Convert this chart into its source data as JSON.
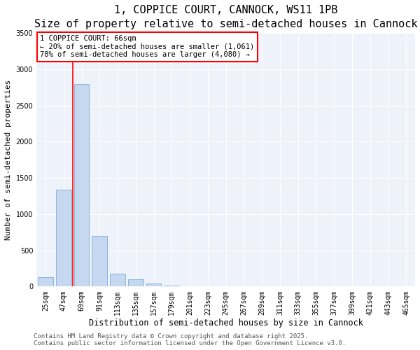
{
  "title": "1, COPPICE COURT, CANNOCK, WS11 1PB",
  "subtitle": "Size of property relative to semi-detached houses in Cannock",
  "xlabel": "Distribution of semi-detached houses by size in Cannock",
  "ylabel": "Number of semi-detached properties",
  "categories": [
    "25sqm",
    "47sqm",
    "69sqm",
    "91sqm",
    "113sqm",
    "135sqm",
    "157sqm",
    "179sqm",
    "201sqm",
    "223sqm",
    "245sqm",
    "267sqm",
    "289sqm",
    "311sqm",
    "333sqm",
    "355sqm",
    "377sqm",
    "399sqm",
    "421sqm",
    "443sqm",
    "465sqm"
  ],
  "values": [
    130,
    1340,
    2800,
    700,
    175,
    100,
    40,
    10,
    0,
    0,
    0,
    0,
    0,
    0,
    0,
    0,
    0,
    0,
    0,
    0,
    0
  ],
  "bar_color": "#c5d8f0",
  "bar_edge_color": "#7bafd4",
  "vline_color": "red",
  "vline_x_index": 1.5,
  "annotation_text": "1 COPPICE COURT: 66sqm\n← 20% of semi-detached houses are smaller (1,061)\n78% of semi-detached houses are larger (4,080) →",
  "annotation_box_color": "white",
  "annotation_box_edge_color": "red",
  "ylim": [
    0,
    3500
  ],
  "yticks": [
    0,
    500,
    1000,
    1500,
    2000,
    2500,
    3000,
    3500
  ],
  "background_color": "#eef2fb",
  "footer_line1": "Contains HM Land Registry data © Crown copyright and database right 2025.",
  "footer_line2": "Contains public sector information licensed under the Open Government Licence v3.0.",
  "title_fontsize": 11,
  "subtitle_fontsize": 9,
  "tick_fontsize": 7,
  "ylabel_fontsize": 8,
  "xlabel_fontsize": 8.5,
  "footer_fontsize": 6.5,
  "annotation_fontsize": 7.5
}
